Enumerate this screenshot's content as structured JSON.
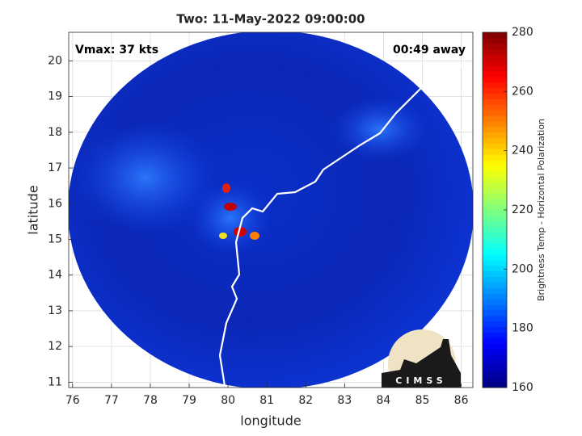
{
  "chart_data": {
    "type": "image",
    "title": "Two: 11-May-2022 09:00:00",
    "annotations": [
      "Vmax: 37 kts",
      "00:49 away"
    ],
    "xlabel": "longitude",
    "ylabel": "latitude",
    "xlim": [
      75.9,
      86.3
    ],
    "xticks": [
      76,
      77,
      78,
      79,
      80,
      81,
      82,
      83,
      84,
      85,
      86
    ],
    "ylim": [
      10.85,
      20.8
    ],
    "yticks": [
      11,
      12,
      13,
      14,
      15,
      16,
      17,
      18,
      19,
      20
    ],
    "grid": true,
    "colorbar": {
      "label": "Brightness Temp - Horizontal Polarization",
      "lim": [
        160,
        280
      ],
      "ticks": [
        160,
        180,
        200,
        220,
        240,
        260,
        280
      ],
      "colormap": "jet"
    },
    "logo": "CIMSS"
  }
}
